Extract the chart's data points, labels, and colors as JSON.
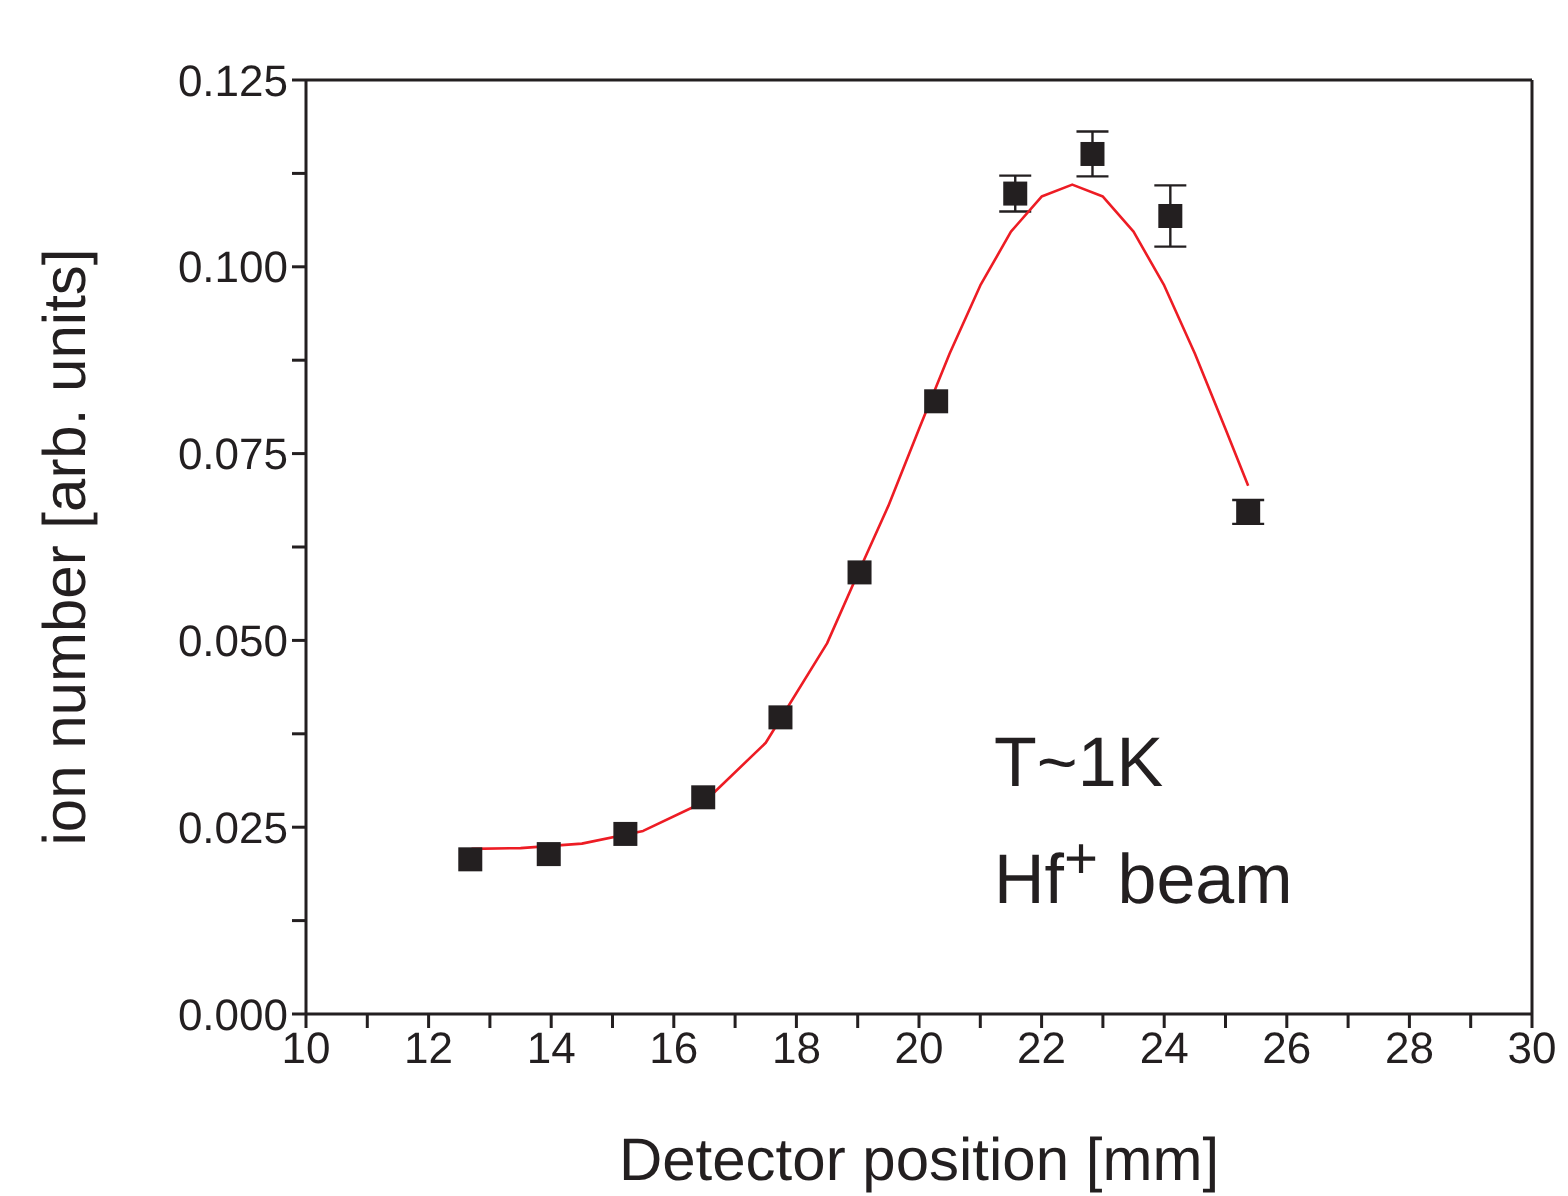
{
  "chart_data": {
    "type": "scatter",
    "xlabel": "Detector position [mm]",
    "ylabel": "ion number [arb. units]",
    "annotations": [
      "T~1K",
      "Hf$^{+}$ beam"
    ],
    "xlim": [
      10,
      30
    ],
    "xticks": [
      10,
      {
        "value": 11,
        "label": null
      },
      12,
      {
        "value": 13,
        "label": null
      },
      14,
      {
        "value": 15,
        "label": null
      },
      16,
      {
        "value": 17,
        "label": null
      },
      18,
      {
        "value": 19,
        "label": null
      },
      20,
      {
        "value": 21,
        "label": null
      },
      22,
      {
        "value": 23,
        "label": null
      },
      24,
      {
        "value": 25,
        "label": null
      },
      26,
      {
        "value": 27,
        "label": null
      },
      28,
      {
        "value": 29,
        "label": null
      },
      30
    ],
    "ylim": [
      0,
      0.125
    ],
    "yticks": [
      {
        "value": 0,
        "label": "0.000"
      },
      {
        "value": 0.0125,
        "label": null
      },
      {
        "value": 0.025,
        "label": "0.025"
      },
      {
        "value": 0.0375,
        "label": null
      },
      {
        "value": 0.05,
        "label": "0.050"
      },
      {
        "value": 0.0625,
        "label": null
      },
      {
        "value": 0.075,
        "label": "0.075"
      },
      {
        "value": 0.0875,
        "label": null
      },
      {
        "value": 0.1,
        "label": "0.100"
      },
      {
        "value": 0.1125,
        "label": null
      },
      {
        "value": 0.125,
        "label": "0.125"
      }
    ],
    "series": [
      {
        "type": "scatter",
        "color": "#231f20",
        "marker": "square",
        "x": [
          12.68,
          13.96,
          15.21,
          16.48,
          17.74,
          19.03,
          20.28,
          21.57,
          22.83,
          24.1,
          25.37
        ],
        "values": [
          0.0207,
          0.0214,
          0.0241,
          0.029,
          0.0397,
          0.0591,
          0.082,
          0.1098,
          0.1151,
          0.1068,
          0.0672
        ],
        "errors": [
          null,
          null,
          null,
          null,
          null,
          null,
          null,
          0.0024,
          0.003,
          0.0041,
          0.0016
        ]
      },
      {
        "type": "line",
        "color": "#ed1c24",
        "marker": "none",
        "x": [
          12.7,
          13.5,
          14.5,
          15.5,
          16.5,
          17.5,
          18.5,
          19,
          19.5,
          20,
          20.5,
          21,
          21.5,
          22,
          22.5,
          23,
          23.5,
          24,
          24.5,
          25,
          25.37
        ],
        "values": [
          0.0221,
          0.0222,
          0.0228,
          0.0245,
          0.0284,
          0.0363,
          0.0496,
          0.0589,
          0.068,
          0.0783,
          0.0884,
          0.0975,
          0.1047,
          0.1094,
          0.111,
          0.1094,
          0.1047,
          0.0975,
          0.0884,
          0.0783,
          0.0707
        ]
      }
    ]
  }
}
